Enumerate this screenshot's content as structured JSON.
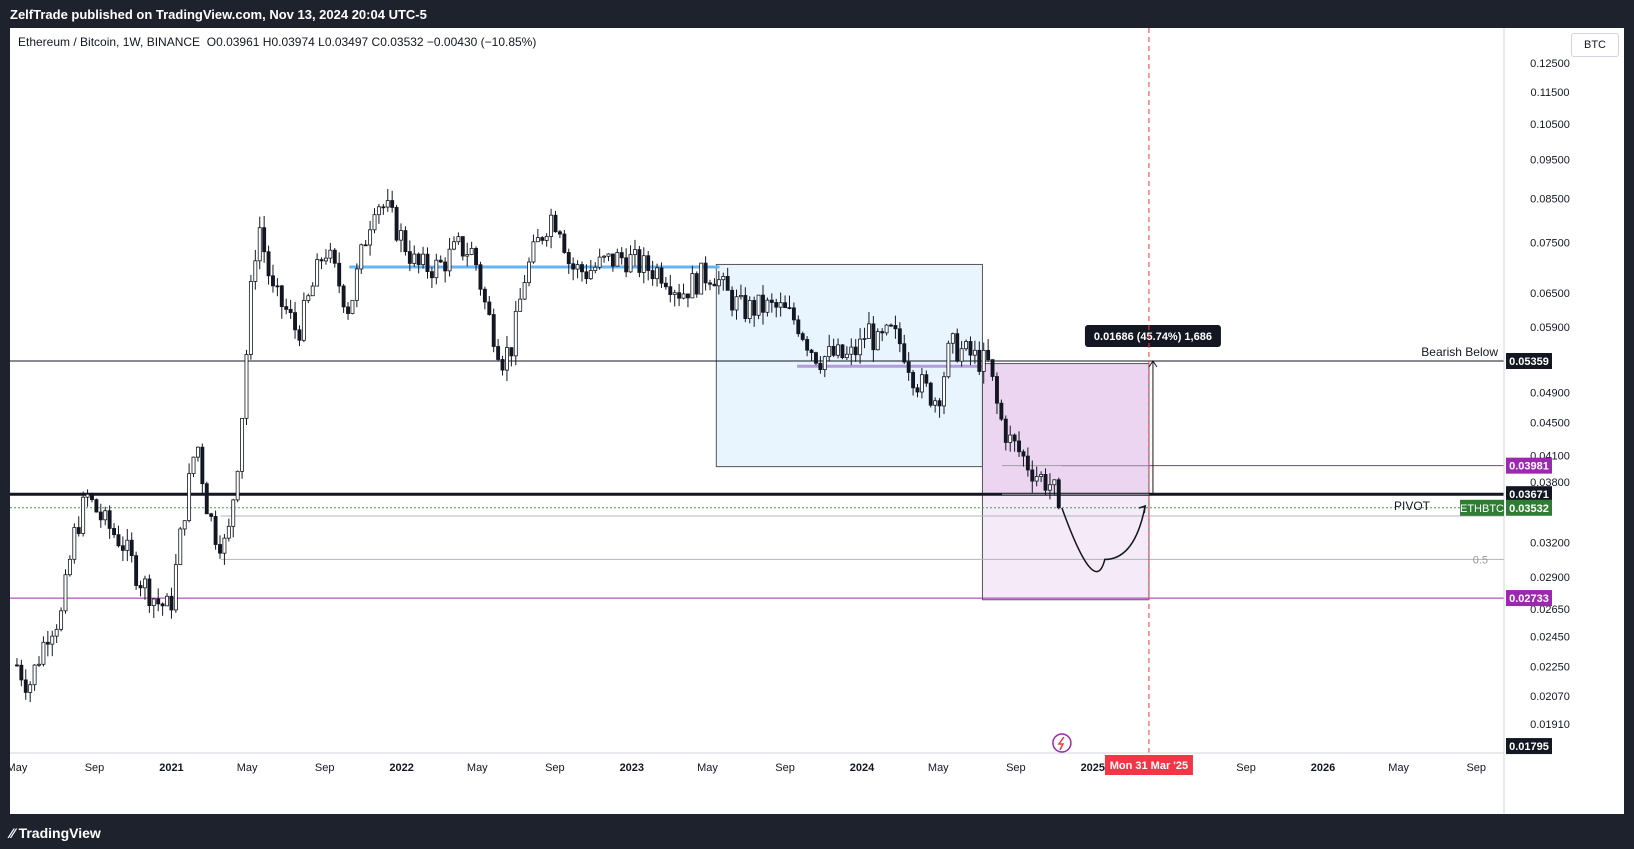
{
  "header": {
    "publisher": "ZelfTrade published on TradingView.com, Nov 13, 2024 20:04 UTC-5"
  },
  "footer": {
    "logo_text": "TradingView"
  },
  "legend": {
    "symbol": "Ethereum / Bitcoin, 1W, BINANCE",
    "ohlc": "O0.03961  H0.03974  L0.03497  C0.03532  −0.00430 (−10.85%)"
  },
  "scale_button": "BTC",
  "colors": {
    "up": "#ffffff",
    "down": "#131722",
    "grid": "#ffffff",
    "accent_purple": "#9c27b0",
    "blue_line": "#64b5f6",
    "red_marker": "#f23645",
    "green_price": "#2e7d32"
  },
  "chart_data": {
    "type": "candlestick",
    "symbol": "ETHBTC",
    "timeframe": "1W",
    "exchange": "BINANCE",
    "log_scale": true,
    "y_range": [
      0.0176,
      0.138
    ],
    "x_range": [
      "2020-04-20",
      "2026-10-15"
    ],
    "price_ticks": [
      0.125,
      0.115,
      0.105,
      0.095,
      0.085,
      0.075,
      0.065,
      0.059,
      0.049,
      0.045,
      0.041,
      0.038,
      0.032,
      0.029,
      0.0265,
      0.0245,
      0.0225,
      0.0207,
      0.0191
    ],
    "time_ticks": [
      {
        "label": "May",
        "date": "2020-05-01"
      },
      {
        "label": "Sep",
        "date": "2020-09-01"
      },
      {
        "label": "2021",
        "date": "2021-01-01"
      },
      {
        "label": "May",
        "date": "2021-05-01"
      },
      {
        "label": "Sep",
        "date": "2021-09-01"
      },
      {
        "label": "2022",
        "date": "2022-01-01"
      },
      {
        "label": "May",
        "date": "2022-05-01"
      },
      {
        "label": "Sep",
        "date": "2022-09-01"
      },
      {
        "label": "2023",
        "date": "2023-01-01"
      },
      {
        "label": "May",
        "date": "2023-05-01"
      },
      {
        "label": "Sep",
        "date": "2023-09-01"
      },
      {
        "label": "2024",
        "date": "2024-01-01"
      },
      {
        "label": "May",
        "date": "2024-05-01"
      },
      {
        "label": "Sep",
        "date": "2024-09-01"
      },
      {
        "label": "2025",
        "date": "2025-01-01"
      },
      {
        "label": "Sep",
        "date": "2025-09-01"
      },
      {
        "label": "2026",
        "date": "2026-01-01"
      },
      {
        "label": "May",
        "date": "2026-05-01"
      },
      {
        "label": "Sep",
        "date": "2026-09-01"
      }
    ],
    "close_path": [
      [
        "2020-05-01",
        0.0226
      ],
      [
        "2020-05-20",
        0.0213
      ],
      [
        "2020-06-20",
        0.025
      ],
      [
        "2020-07-10",
        0.026
      ],
      [
        "2020-07-30",
        0.0325
      ],
      [
        "2020-08-20",
        0.0365
      ],
      [
        "2020-09-15",
        0.034
      ],
      [
        "2020-10-15",
        0.032
      ],
      [
        "2020-11-10",
        0.029
      ],
      [
        "2020-12-10",
        0.027
      ],
      [
        "2020-12-30",
        0.0265
      ],
      [
        "2021-01-20",
        0.0345
      ],
      [
        "2021-02-10",
        0.043
      ],
      [
        "2021-02-25",
        0.036
      ],
      [
        "2021-03-10",
        0.033
      ],
      [
        "2021-03-30",
        0.0315
      ],
      [
        "2021-04-20",
        0.043
      ],
      [
        "2021-05-10",
        0.07
      ],
      [
        "2021-05-20",
        0.079
      ],
      [
        "2021-06-10",
        0.065
      ],
      [
        "2021-07-01",
        0.062
      ],
      [
        "2021-07-20",
        0.058
      ],
      [
        "2021-08-10",
        0.065
      ],
      [
        "2021-09-01",
        0.074
      ],
      [
        "2021-09-20",
        0.068
      ],
      [
        "2021-10-10",
        0.062
      ],
      [
        "2021-11-01",
        0.074
      ],
      [
        "2021-11-20",
        0.085
      ],
      [
        "2021-12-10",
        0.082
      ],
      [
        "2022-01-01",
        0.076
      ],
      [
        "2022-01-25",
        0.07
      ],
      [
        "2022-03-01",
        0.07
      ],
      [
        "2022-04-01",
        0.074
      ],
      [
        "2022-04-25",
        0.073
      ],
      [
        "2022-05-15",
        0.062
      ],
      [
        "2022-06-10",
        0.054
      ],
      [
        "2022-06-25",
        0.056
      ],
      [
        "2022-07-15",
        0.068
      ],
      [
        "2022-08-05",
        0.075
      ],
      [
        "2022-08-25",
        0.081
      ],
      [
        "2022-09-10",
        0.079
      ],
      [
        "2022-09-25",
        0.07
      ],
      [
        "2022-10-20",
        0.069
      ],
      [
        "2022-11-20",
        0.071
      ],
      [
        "2022-12-20",
        0.072
      ],
      [
        "2023-01-20",
        0.07
      ],
      [
        "2023-02-20",
        0.069
      ],
      [
        "2023-03-20",
        0.065
      ],
      [
        "2023-04-20",
        0.068
      ],
      [
        "2023-05-10",
        0.069
      ],
      [
        "2023-05-30",
        0.065
      ],
      [
        "2023-06-25",
        0.062
      ],
      [
        "2023-07-30",
        0.0625
      ],
      [
        "2023-08-25",
        0.062
      ],
      [
        "2023-09-20",
        0.06
      ],
      [
        "2023-10-10",
        0.056
      ],
      [
        "2023-10-25",
        0.054
      ],
      [
        "2023-11-15",
        0.0545
      ],
      [
        "2023-12-10",
        0.054
      ],
      [
        "2023-12-30",
        0.056
      ],
      [
        "2024-01-10",
        0.059
      ],
      [
        "2024-01-25",
        0.056
      ],
      [
        "2024-02-15",
        0.058
      ],
      [
        "2024-03-05",
        0.056
      ],
      [
        "2024-03-25",
        0.051
      ],
      [
        "2024-04-15",
        0.049
      ],
      [
        "2024-04-30",
        0.048
      ],
      [
        "2024-05-20",
        0.056
      ],
      [
        "2024-06-10",
        0.055
      ],
      [
        "2024-06-30",
        0.054
      ],
      [
        "2024-07-20",
        0.053
      ],
      [
        "2024-08-05",
        0.046
      ],
      [
        "2024-08-20",
        0.043
      ],
      [
        "2024-09-05",
        0.0415
      ],
      [
        "2024-09-25",
        0.0395
      ],
      [
        "2024-10-10",
        0.0385
      ],
      [
        "2024-10-25",
        0.0378
      ],
      [
        "2024-11-05",
        0.0365
      ],
      [
        "2024-11-13",
        0.03532
      ]
    ],
    "horizontal_levels": [
      {
        "price": 0.05359,
        "label": "Bearish Below",
        "price_label": "0.05359",
        "style": "thin-black"
      },
      {
        "price": 0.03671,
        "label": "PIVOT",
        "price_label": "0.03671",
        "style": "thick-black"
      },
      {
        "price": 0.03981,
        "price_label": "0.03981",
        "style": "purple"
      },
      {
        "price": 0.02733,
        "price_label": "0.02733",
        "style": "purple"
      },
      {
        "price": 0.03532,
        "label": "ETHBTC",
        "price_label": "0.03532",
        "style": "green-dotted"
      },
      {
        "price": 0.0305,
        "label": "0.5",
        "style": "grey"
      },
      {
        "price": 0.01795,
        "price_label": "0.01795",
        "style": "black-box"
      }
    ],
    "annotations": {
      "measure_label": "0.01686 (45.74%) 1,686",
      "vertical_marker_label": "Mon 31 Mar '25",
      "vertical_marker_date": "2025-03-31",
      "blue_box": {
        "from": "2023-05-15",
        "to": "2024-07-10",
        "top": 0.0705,
        "bottom": 0.0397
      },
      "pink_box": {
        "from": "2024-07-10",
        "to": "2025-03-31",
        "top": 0.0532,
        "bottom": 0.0272
      },
      "resistance_lines": [
        {
          "from": "2021-10-10",
          "to": "2023-05-20",
          "price": 0.07,
          "color": "#64b5f6"
        },
        {
          "from": "2023-09-20",
          "to": "2024-07-10",
          "price": 0.0528,
          "color": "#b39ddb"
        }
      ],
      "ranges": [
        {
          "from": "2024-08-10",
          "to": "2025-03-31",
          "price": 0.03981
        },
        {
          "from": "2024-08-10",
          "to": "2025-03-31",
          "price": 0.03671
        }
      ],
      "curve": {
        "from": [
          "2024-11-13",
          0.0353
        ],
        "bottom": [
          "2025-01-20",
          0.0305
        ],
        "to": [
          "2025-03-25",
          0.0355
        ]
      }
    }
  }
}
